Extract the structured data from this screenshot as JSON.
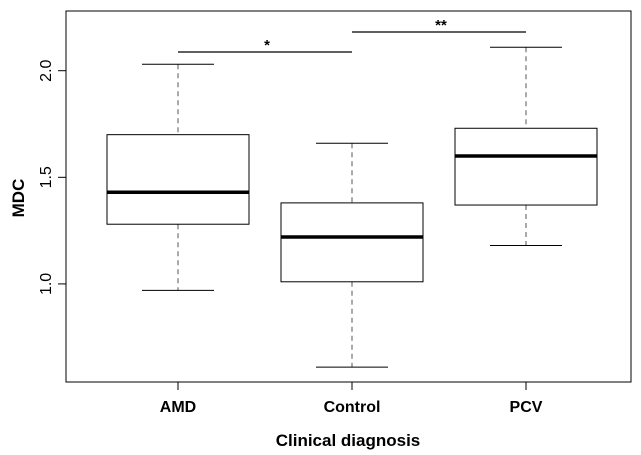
{
  "chart_data": {
    "type": "box",
    "xlabel": "Clinical diagnosis",
    "ylabel": "MDC",
    "ylim": [
      0.54,
      2.28
    ],
    "yticks": [
      1.0,
      1.5,
      2.0
    ],
    "ytick_labels": [
      "1.0",
      "1.5",
      "2.0"
    ],
    "grid": false,
    "categories": [
      "AMD",
      "Control",
      "PCV"
    ],
    "boxes": [
      {
        "category": "AMD",
        "whisker_low": 0.97,
        "q1": 1.28,
        "median": 1.43,
        "q3": 1.7,
        "whisker_high": 2.03
      },
      {
        "category": "Control",
        "whisker_low": 0.61,
        "q1": 1.01,
        "median": 1.22,
        "q3": 1.38,
        "whisker_high": 1.66
      },
      {
        "category": "PCV",
        "whisker_low": 1.18,
        "q1": 1.37,
        "median": 1.6,
        "q3": 1.73,
        "whisker_high": 2.11
      }
    ],
    "significance": [
      {
        "from": "AMD",
        "to": "Control",
        "label": "*"
      },
      {
        "from": "Control",
        "to": "PCV",
        "label": "**"
      }
    ]
  }
}
